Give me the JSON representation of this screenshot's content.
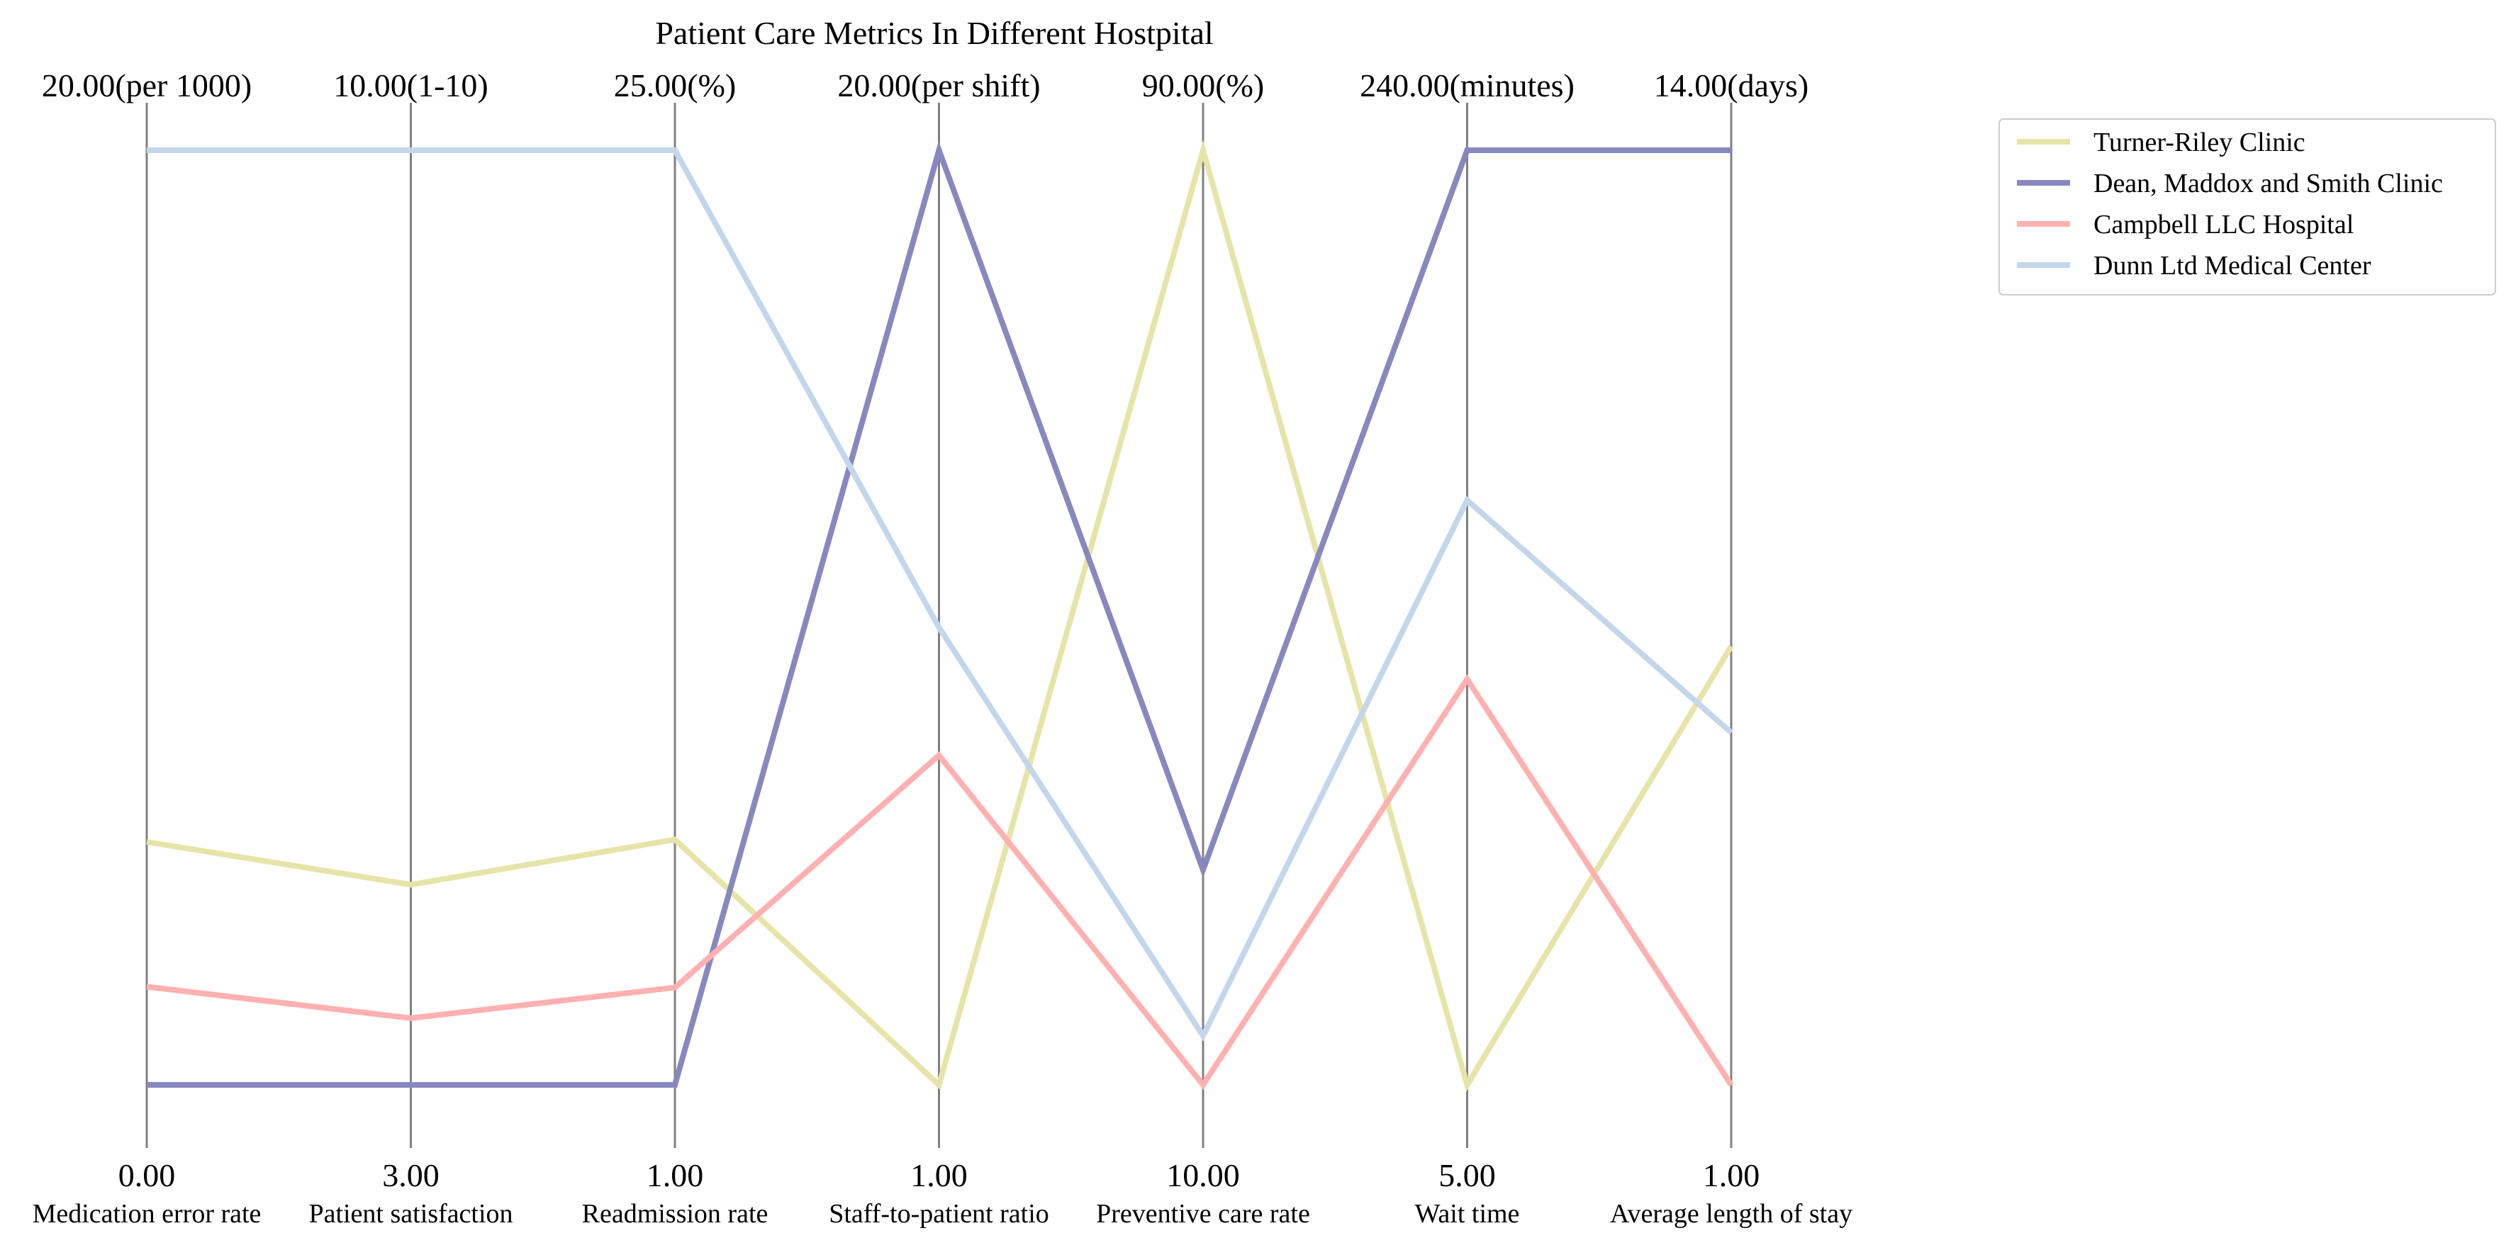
{
  "chart_data": {
    "type": "parallel-coordinates",
    "title": "Patient Care Metrics In Different Hostpital",
    "axes": [
      {
        "name": "Medication error rate",
        "min": 0,
        "max": 20,
        "min_label": "0.00",
        "max_label": "20.00(per 1000)"
      },
      {
        "name": "Patient satisfaction",
        "min": 3,
        "max": 10,
        "min_label": "3.00",
        "max_label": "10.00(1-10)"
      },
      {
        "name": "Readmission rate",
        "min": 1,
        "max": 25,
        "min_label": "1.00",
        "max_label": "25.00(%)"
      },
      {
        "name": "Staff-to-patient ratio",
        "min": 1,
        "max": 20,
        "min_label": "1.00",
        "max_label": "20.00(per shift)"
      },
      {
        "name": "Preventive care rate",
        "min": 10,
        "max": 90,
        "min_label": "10.00",
        "max_label": "90.00(%)"
      },
      {
        "name": "Wait time",
        "min": 5,
        "max": 240,
        "min_label": "5.00",
        "max_label": "240.00(minutes)"
      },
      {
        "name": "Average length of stay",
        "min": 1,
        "max": 14,
        "min_label": "1.00",
        "max_label": "14.00(days)"
      }
    ],
    "series": [
      {
        "name": "Turner-Riley  Clinic",
        "color": "#e6e4a8",
        "values": [
          5.2,
          4.5,
          7.3,
          1,
          90,
          5,
          7.1
        ]
      },
      {
        "name": "Dean, Maddox and Smith  Clinic",
        "color": "#8888c0",
        "values": [
          0,
          3,
          1,
          20,
          28.4,
          240,
          14
        ]
      },
      {
        "name": "Campbell LLC  Hospital",
        "color": "#ffb0b0",
        "values": [
          2.1,
          3.5,
          3.5,
          7.7,
          10,
          107,
          1
        ]
      },
      {
        "name": "Dunn Ltd  Medical Center",
        "color": "#c4d6ea",
        "values": [
          20,
          10,
          25,
          10.3,
          14.2,
          152,
          5.9
        ]
      }
    ],
    "legend_position": "upper-right-outside",
    "grid": false,
    "axis_line_color": "#808080"
  }
}
